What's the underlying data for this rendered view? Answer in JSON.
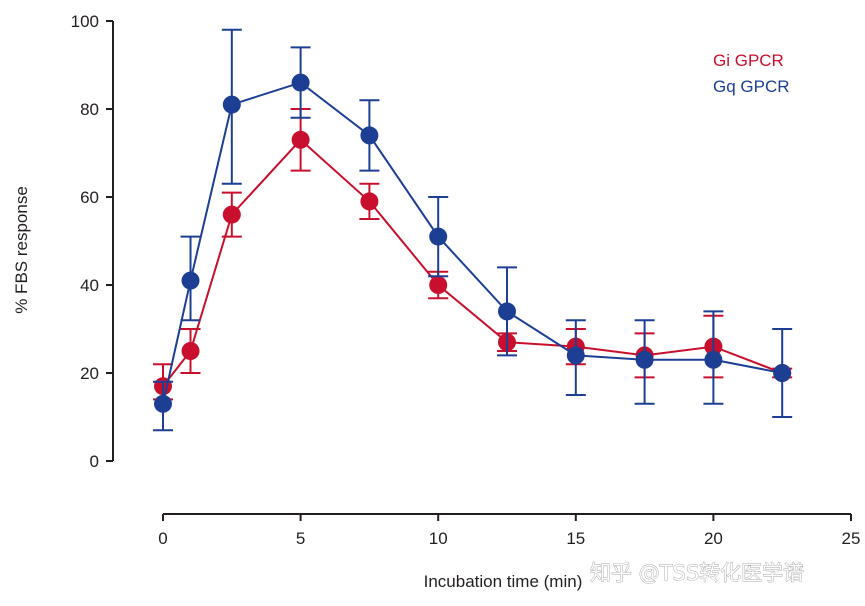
{
  "chart_data": {
    "type": "line",
    "title": "",
    "xlabel": "Incubation time (min)",
    "ylabel": "% FBS response",
    "xlim": [
      0,
      25
    ],
    "ylim": [
      0,
      100
    ],
    "xticks": [
      "0",
      "5",
      "10",
      "15",
      "20",
      "25"
    ],
    "yticks": [
      "0",
      "20",
      "40",
      "60",
      "80",
      "100"
    ],
    "grid": false,
    "legend_position": "top-right",
    "series": [
      {
        "name": "Gi GPCR",
        "color": "#c8102e",
        "x": [
          0,
          1,
          2.5,
          5,
          7.5,
          10,
          12.5,
          15,
          17.5,
          20,
          22.5
        ],
        "y": [
          17,
          25,
          56,
          73,
          59,
          40,
          27,
          26,
          24,
          26,
          20
        ],
        "error_upper": [
          5,
          5,
          5,
          7,
          4,
          3,
          2,
          4,
          5,
          7,
          1
        ],
        "error_lower": [
          3,
          5,
          5,
          7,
          4,
          3,
          2,
          4,
          5,
          7,
          1
        ]
      },
      {
        "name": "Gq GPCR",
        "color": "#1c3f94",
        "x": [
          0,
          1,
          2.5,
          5,
          7.5,
          10,
          12.5,
          15,
          17.5,
          20,
          22.5
        ],
        "y": [
          13,
          41,
          81,
          86,
          74,
          51,
          34,
          24,
          23,
          23,
          20
        ],
        "error_upper": [
          5,
          10,
          17,
          8,
          8,
          9,
          10,
          8,
          9,
          11,
          10
        ],
        "error_lower": [
          6,
          9,
          18,
          8,
          8,
          9,
          10,
          9,
          10,
          10,
          10
        ]
      }
    ]
  },
  "watermark": {
    "text": "知乎 @TSS转化医学谱"
  }
}
